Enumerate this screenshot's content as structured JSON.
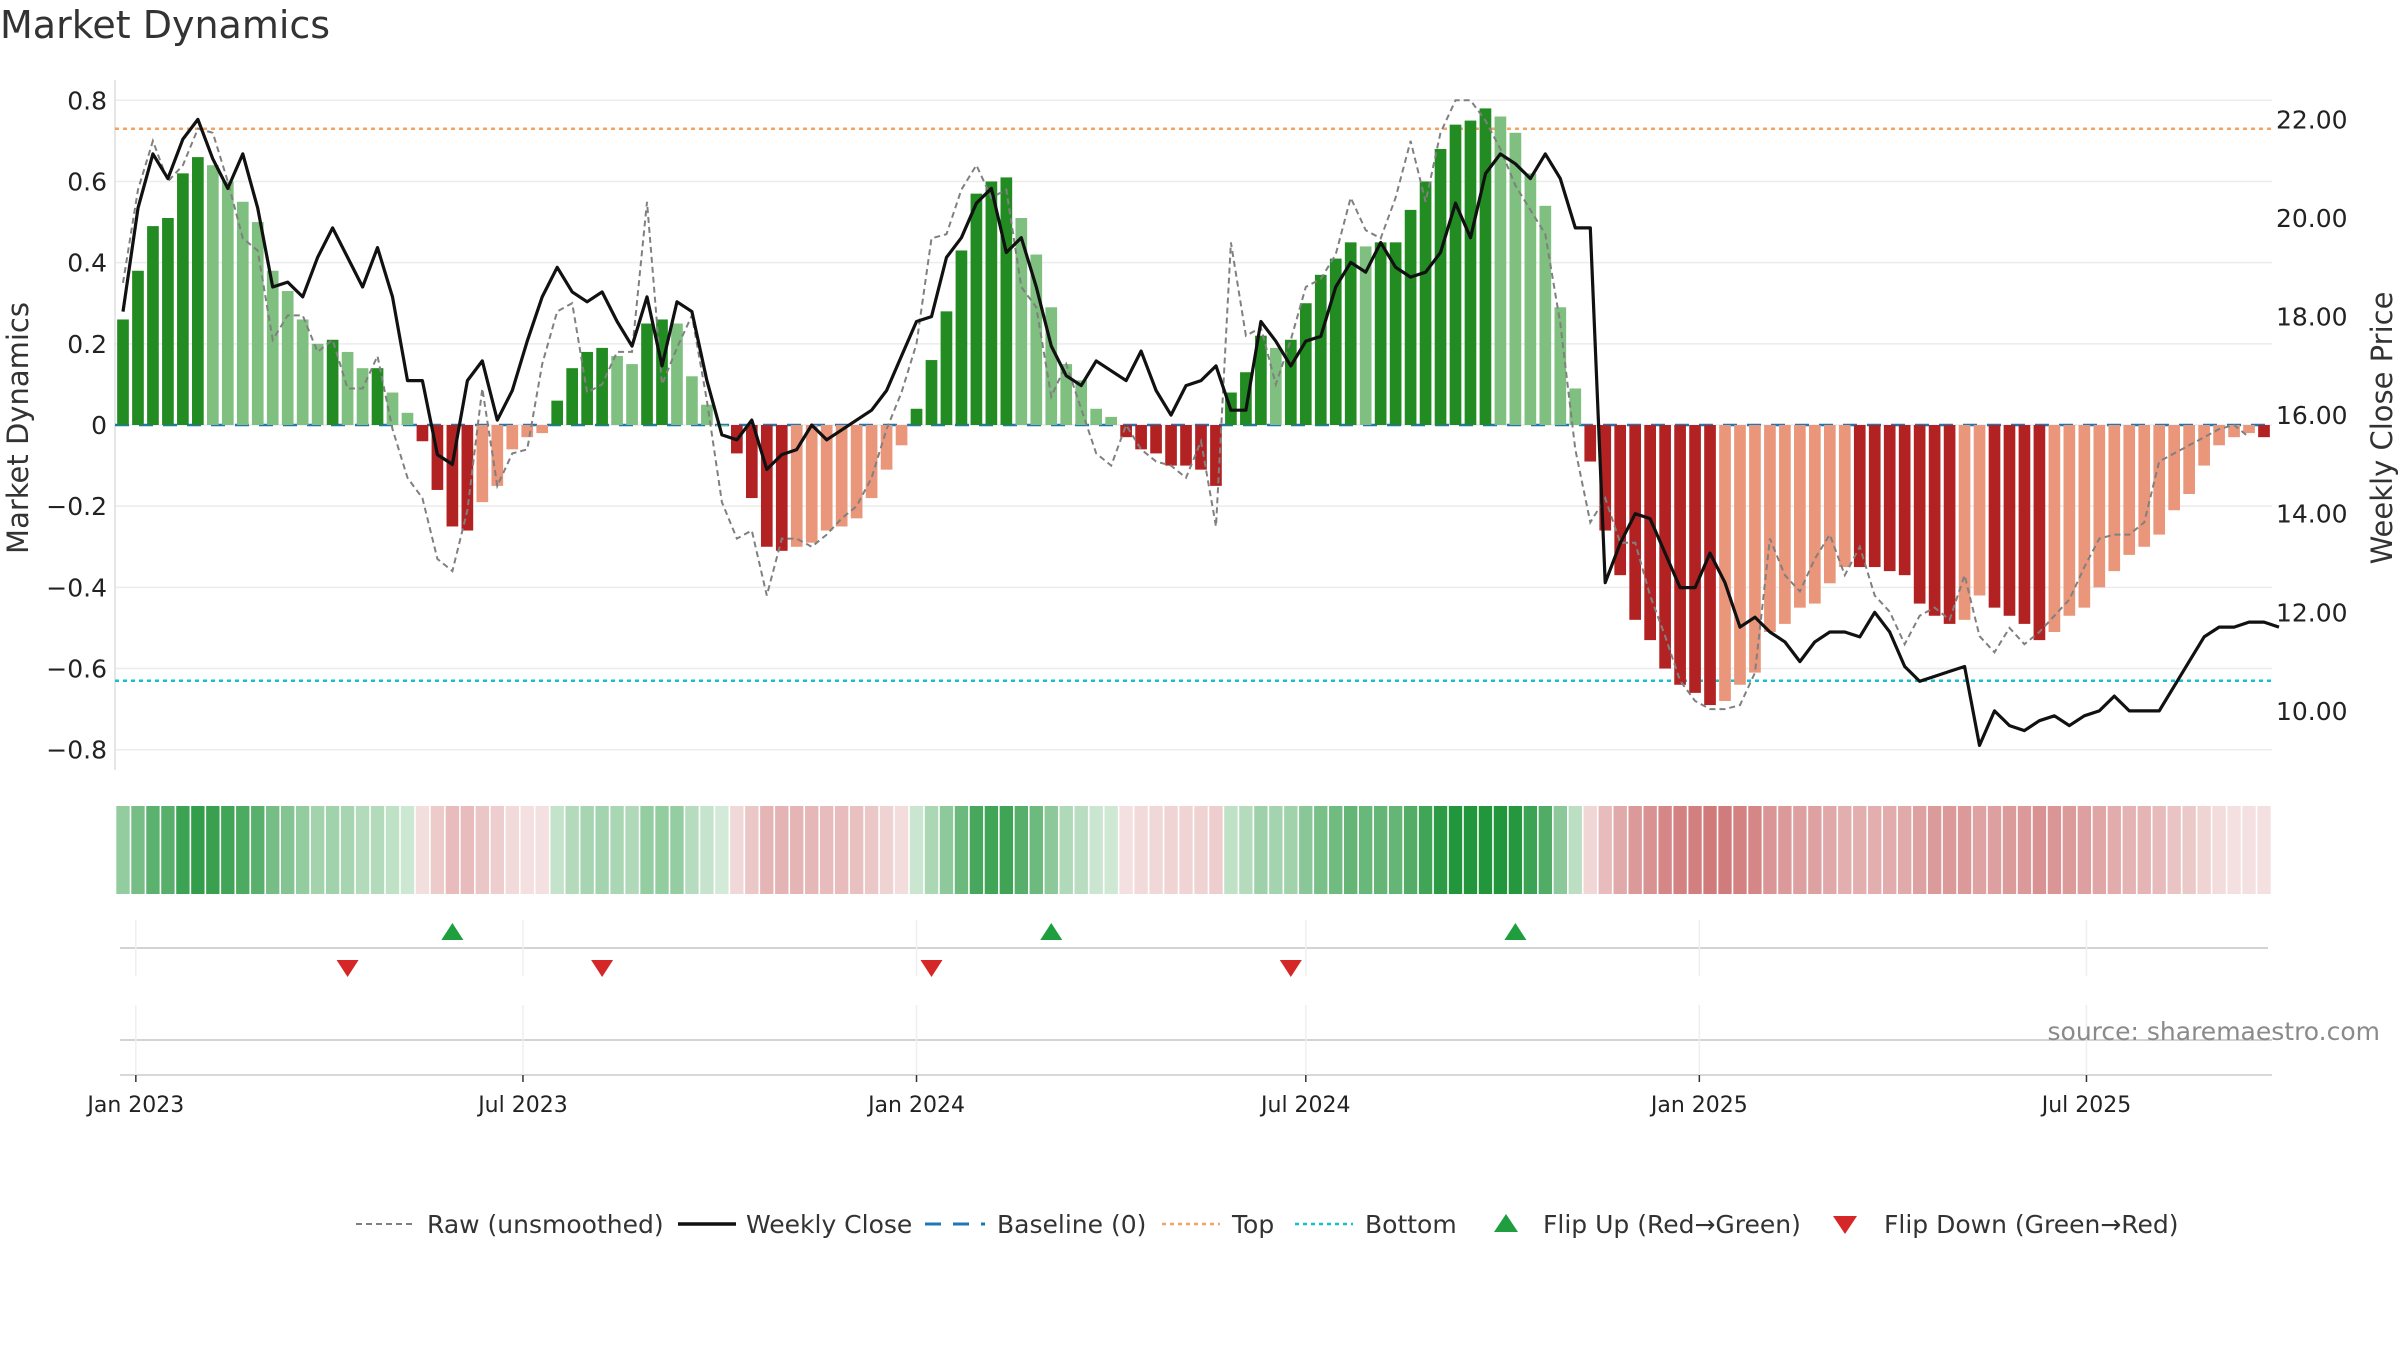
{
  "chart_data": {
    "type": "bar",
    "title": "Market Dynamics",
    "ylabel_left": "Market Dynamics",
    "ylabel_right": "Weekly Close Price",
    "left_ylim": [
      -0.85,
      0.85
    ],
    "right_ylim": [
      8.8,
      22.8
    ],
    "left_ticks": [
      "−0.8",
      "−0.6",
      "−0.4",
      "−0.2",
      "0",
      "0.2",
      "0.4",
      "0.6",
      "0.8"
    ],
    "left_tick_values": [
      -0.8,
      -0.6,
      -0.4,
      -0.2,
      0,
      0.2,
      0.4,
      0.6,
      0.8
    ],
    "right_ticks": [
      "10.00",
      "12.00",
      "14.00",
      "16.00",
      "18.00",
      "20.00",
      "22.00"
    ],
    "right_tick_values": [
      10,
      12,
      14,
      16,
      18,
      20,
      22
    ],
    "x_start": "2022-12-26",
    "x_ticks": [
      "Jan 2023",
      "Jul 2023",
      "Jan 2024",
      "Jul 2024",
      "Jan 2025",
      "Jul 2025"
    ],
    "x_tick_dates": [
      "2023-01-01",
      "2023-07-01",
      "2024-01-01",
      "2024-07-01",
      "2025-01-01",
      "2025-07-01"
    ],
    "top_level": 0.73,
    "bottom_level": -0.63,
    "dynamics": [
      0.26,
      0.38,
      0.49,
      0.51,
      0.62,
      0.66,
      0.64,
      0.6,
      0.55,
      0.5,
      0.38,
      0.33,
      0.26,
      0.2,
      0.21,
      0.18,
      0.14,
      0.14,
      0.08,
      0.03,
      -0.04,
      -0.16,
      -0.25,
      -0.26,
      -0.19,
      -0.15,
      -0.06,
      -0.03,
      -0.02,
      0.06,
      0.14,
      0.18,
      0.19,
      0.17,
      0.15,
      0.25,
      0.26,
      0.25,
      0.12,
      0.05,
      0.0,
      -0.07,
      -0.18,
      -0.3,
      -0.31,
      -0.3,
      -0.29,
      -0.26,
      -0.25,
      -0.23,
      -0.18,
      -0.11,
      -0.05,
      0.04,
      0.16,
      0.28,
      0.43,
      0.57,
      0.6,
      0.61,
      0.51,
      0.42,
      0.29,
      0.15,
      0.11,
      0.04,
      0.02,
      -0.03,
      -0.06,
      -0.07,
      -0.1,
      -0.1,
      -0.11,
      -0.15,
      0.08,
      0.13,
      0.22,
      0.19,
      0.21,
      0.3,
      0.37,
      0.41,
      0.45,
      0.44,
      0.45,
      0.45,
      0.53,
      0.6,
      0.68,
      0.74,
      0.75,
      0.78,
      0.76,
      0.72,
      0.62,
      0.54,
      0.29,
      0.09,
      -0.09,
      -0.26,
      -0.37,
      -0.48,
      -0.53,
      -0.6,
      -0.64,
      -0.66,
      -0.69,
      -0.68,
      -0.64,
      -0.61,
      -0.51,
      -0.49,
      -0.45,
      -0.44,
      -0.39,
      -0.35,
      -0.35,
      -0.35,
      -0.36,
      -0.37,
      -0.44,
      -0.47,
      -0.49,
      -0.48,
      -0.42,
      -0.45,
      -0.47,
      -0.49,
      -0.53,
      -0.51,
      -0.47,
      -0.45,
      -0.4,
      -0.36,
      -0.32,
      -0.3,
      -0.27,
      -0.21,
      -0.17,
      -0.1,
      -0.05,
      -0.03,
      -0.02,
      -0.03
    ],
    "raw": [
      0.35,
      0.58,
      0.7,
      0.6,
      0.64,
      0.73,
      0.72,
      0.6,
      0.46,
      0.43,
      0.21,
      0.27,
      0.27,
      0.18,
      0.21,
      0.09,
      0.09,
      0.17,
      -0.01,
      -0.13,
      -0.18,
      -0.33,
      -0.36,
      -0.21,
      0.09,
      -0.15,
      -0.07,
      -0.06,
      0.15,
      0.28,
      0.3,
      0.08,
      0.1,
      0.18,
      0.18,
      0.55,
      0.1,
      0.19,
      0.27,
      0.06,
      -0.19,
      -0.28,
      -0.26,
      -0.42,
      -0.28,
      -0.28,
      -0.3,
      -0.27,
      -0.23,
      -0.2,
      -0.13,
      -0.01,
      0.08,
      0.2,
      0.46,
      0.47,
      0.58,
      0.64,
      0.56,
      0.58,
      0.34,
      0.29,
      0.07,
      0.15,
      0.04,
      -0.07,
      -0.1,
      0.0,
      -0.06,
      -0.09,
      -0.1,
      -0.13,
      -0.04,
      -0.25,
      0.45,
      0.22,
      0.24,
      0.1,
      0.21,
      0.34,
      0.36,
      0.42,
      0.56,
      0.48,
      0.46,
      0.56,
      0.7,
      0.55,
      0.72,
      0.8,
      0.8,
      0.75,
      0.68,
      0.59,
      0.53,
      0.47,
      0.25,
      -0.06,
      -0.24,
      -0.18,
      -0.29,
      -0.29,
      -0.42,
      -0.52,
      -0.63,
      -0.68,
      -0.7,
      -0.7,
      -0.69,
      -0.61,
      -0.28,
      -0.37,
      -0.41,
      -0.33,
      -0.27,
      -0.37,
      -0.3,
      -0.42,
      -0.46,
      -0.54,
      -0.47,
      -0.45,
      -0.48,
      -0.37,
      -0.52,
      -0.56,
      -0.5,
      -0.54,
      -0.51,
      -0.47,
      -0.43,
      -0.35,
      -0.28,
      -0.27,
      -0.27,
      -0.24,
      -0.09,
      -0.07,
      -0.05,
      -0.03,
      -0.01,
      0.0,
      -0.03
    ],
    "weekly_close": [
      18.1,
      20.2,
      21.3,
      20.8,
      21.6,
      22.0,
      21.2,
      20.6,
      21.3,
      20.2,
      18.6,
      18.7,
      18.4,
      19.2,
      19.8,
      19.2,
      18.6,
      19.4,
      18.4,
      16.7,
      16.7,
      15.2,
      15.0,
      16.7,
      17.1,
      15.9,
      16.5,
      17.5,
      18.4,
      19.0,
      18.5,
      18.3,
      18.5,
      17.9,
      17.4,
      18.4,
      17.0,
      18.3,
      18.1,
      16.7,
      15.6,
      15.5,
      15.9,
      14.9,
      15.2,
      15.3,
      15.8,
      15.5,
      15.7,
      15.9,
      16.1,
      16.5,
      17.2,
      17.9,
      18.0,
      19.2,
      19.6,
      20.3,
      20.6,
      19.3,
      19.6,
      18.6,
      17.4,
      16.8,
      16.6,
      17.1,
      16.9,
      16.7,
      17.3,
      16.5,
      16.0,
      16.6,
      16.7,
      17.0,
      16.1,
      16.1,
      17.9,
      17.5,
      17.0,
      17.5,
      17.6,
      18.6,
      19.1,
      18.9,
      19.5,
      19.0,
      18.8,
      18.9,
      19.3,
      20.3,
      19.6,
      20.9,
      21.3,
      21.1,
      20.8,
      21.3,
      20.8,
      19.8,
      19.8,
      12.6,
      13.4,
      14.0,
      13.9,
      13.2,
      12.5,
      12.5,
      13.2,
      12.6,
      11.7,
      11.9,
      11.6,
      11.4,
      11.0,
      11.4,
      11.6,
      11.6,
      11.5,
      12.0,
      11.6,
      10.9,
      10.6,
      10.7,
      10.8,
      10.9,
      9.3,
      10.0,
      9.7,
      9.6,
      9.8,
      9.9,
      9.7,
      9.9,
      10.0,
      10.3,
      10.0,
      10.0,
      10.0,
      10.5,
      11.0,
      11.5,
      11.7,
      11.7,
      11.8,
      11.8,
      11.7
    ],
    "flips_up_week": [
      22,
      62,
      93
    ],
    "flips_down_week": [
      15,
      32,
      54,
      78
    ],
    "legend": [
      {
        "label": "Raw (unsmoothed)",
        "kind": "dashed-gray"
      },
      {
        "label": "Weekly Close",
        "kind": "solid-black"
      },
      {
        "label": "Baseline (0)",
        "kind": "dashed-blue"
      },
      {
        "label": "Top",
        "kind": "dotted-orange"
      },
      {
        "label": "Bottom",
        "kind": "dotted-cyan"
      },
      {
        "label": "Flip Up (Red→Green)",
        "kind": "triangle-up"
      },
      {
        "label": "Flip Down (Green→Red)",
        "kind": "triangle-down"
      }
    ],
    "source": "source: sharemaestro.com",
    "colors": {
      "green_strong": "#228B22",
      "green_light": "#7fbf7f",
      "red_strong": "#b22222",
      "red_light": "#e9967a",
      "raw": "#808080",
      "close": "#111111",
      "baseline": "#1f77b4",
      "top": "#f4a460",
      "bottom": "#17becf",
      "flip_up": "#1f9e3f",
      "flip_down": "#d62728"
    }
  }
}
